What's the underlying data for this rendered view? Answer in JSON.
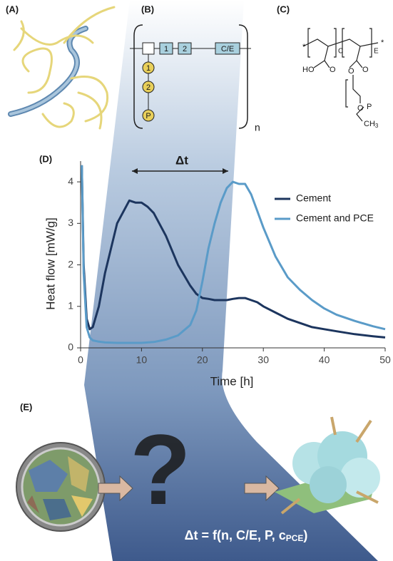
{
  "panels": {
    "a": "(A)",
    "b": "(B)",
    "c": "(C)",
    "d": "(D)",
    "e": "(E)"
  },
  "panel_b": {
    "backbone": [
      "1",
      "2",
      "C/E"
    ],
    "side_chain": [
      "1",
      "2",
      "P"
    ],
    "repeat": "n"
  },
  "panel_c": {
    "unit_c": "C",
    "unit_e": "E",
    "acid": "HO",
    "o1": "O",
    "o2": "O",
    "o3": "O",
    "o4": "O",
    "end": "P",
    "methyl": "CH",
    "methyl_sub": "3",
    "star": "*"
  },
  "panel_e": {
    "question": "?",
    "formula": "Δt = f(n, C/E, P, c",
    "formula_sub": "PCE",
    "formula_end": ")"
  },
  "chart_data": {
    "type": "line",
    "xlabel": "Time [h]",
    "ylabel": "Heat flow [mW/g]",
    "annotation": "Δt",
    "x": [
      0.2,
      0.5,
      1,
      1.5,
      2,
      3,
      4,
      6,
      8,
      9,
      10,
      11,
      12,
      14,
      16,
      18,
      19,
      20,
      21,
      22,
      23,
      24,
      25,
      26,
      27,
      28,
      29,
      30,
      32,
      34,
      36,
      38,
      40,
      42,
      45,
      48,
      50
    ],
    "series": [
      {
        "name": "Cement",
        "color": "#1c355e",
        "values": [
          4.4,
          2.0,
          0.7,
          0.45,
          0.5,
          1.0,
          1.8,
          3.0,
          3.55,
          3.5,
          3.5,
          3.4,
          3.25,
          2.7,
          2.0,
          1.5,
          1.3,
          1.2,
          1.18,
          1.15,
          1.15,
          1.15,
          1.18,
          1.2,
          1.2,
          1.15,
          1.1,
          1.0,
          0.85,
          0.7,
          0.6,
          0.5,
          0.45,
          0.4,
          0.33,
          0.28,
          0.25
        ]
      },
      {
        "name": "Cement and PCE",
        "color": "#5a9bc8",
        "values": [
          4.4,
          1.8,
          0.5,
          0.25,
          0.18,
          0.15,
          0.13,
          0.12,
          0.12,
          0.12,
          0.12,
          0.13,
          0.14,
          0.2,
          0.3,
          0.55,
          0.9,
          1.6,
          2.4,
          3.0,
          3.5,
          3.85,
          4.0,
          3.95,
          3.95,
          3.7,
          3.3,
          2.9,
          2.2,
          1.7,
          1.4,
          1.15,
          0.95,
          0.8,
          0.65,
          0.52,
          0.45
        ]
      }
    ],
    "xlim": [
      0,
      50
    ],
    "ylim": [
      0,
      4.5
    ],
    "xticks": [
      0,
      10,
      20,
      30,
      40,
      50
    ],
    "yticks": [
      0,
      1,
      2,
      3,
      4
    ],
    "legend": "upper right"
  }
}
